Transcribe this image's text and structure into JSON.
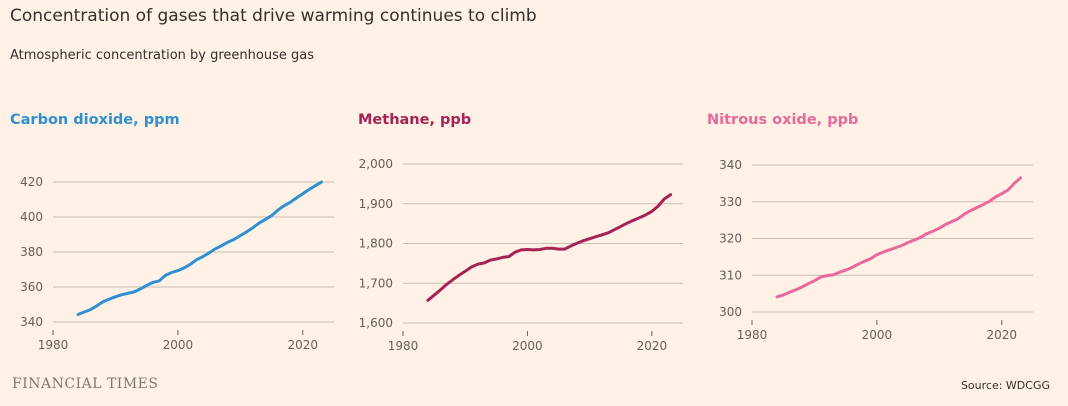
{
  "title": "Concentration of gases that drive warming continues to climb",
  "subtitle": "Atmospheric concentration by greenhouse gas",
  "footer": {
    "brand": "FINANCIAL TIMES",
    "source": "Source: WDCGG"
  },
  "chart_data": [
    {
      "type": "line",
      "title": "Carbon dioxide, ppm",
      "color": "#2e90d1",
      "xlabel": "",
      "ylabel": "",
      "xlim": [
        1980,
        2025
      ],
      "ylim": [
        340,
        425
      ],
      "x_ticks": [
        1980,
        2000,
        2020
      ],
      "y_ticks": [
        340,
        360,
        380,
        400,
        420
      ],
      "y_tick_labels": [
        "340",
        "360",
        "380",
        "400",
        "420"
      ],
      "x": [
        1984,
        1985,
        1986,
        1987,
        1988,
        1989,
        1990,
        1991,
        1992,
        1993,
        1994,
        1995,
        1996,
        1997,
        1998,
        1999,
        2000,
        2001,
        2002,
        2003,
        2004,
        2005,
        2006,
        2007,
        2008,
        2009,
        2010,
        2011,
        2012,
        2013,
        2014,
        2015,
        2016,
        2017,
        2018,
        2019,
        2020,
        2021,
        2022,
        2023
      ],
      "values": [
        344.3,
        345.7,
        347.1,
        349.2,
        351.6,
        353.1,
        354.4,
        355.6,
        356.4,
        357.2,
        358.9,
        360.9,
        362.6,
        363.5,
        366.6,
        368.3,
        369.4,
        370.9,
        373.0,
        375.6,
        377.4,
        379.5,
        381.8,
        383.6,
        385.6,
        387.2,
        389.4,
        391.5,
        393.9,
        396.5,
        398.6,
        400.8,
        403.9,
        406.4,
        408.4,
        410.9,
        413.3,
        415.7,
        417.9,
        420.0
      ]
    },
    {
      "type": "line",
      "title": "Methane, ppb",
      "color": "#a62455",
      "xlabel": "",
      "ylabel": "",
      "xlim": [
        1980,
        2025
      ],
      "ylim": [
        1600,
        2000
      ],
      "x_ticks": [
        1980,
        2000,
        2020
      ],
      "y_ticks": [
        1600,
        1700,
        1800,
        1900,
        2000
      ],
      "y_tick_labels": [
        "1,600",
        "1,700",
        "1,800",
        "1,900",
        "2,000"
      ],
      "x": [
        1984,
        1985,
        1986,
        1987,
        1988,
        1989,
        1990,
        1991,
        1992,
        1993,
        1994,
        1995,
        1996,
        1997,
        1998,
        1999,
        2000,
        2001,
        2002,
        2003,
        2004,
        2005,
        2006,
        2007,
        2008,
        2009,
        2010,
        2011,
        2012,
        2013,
        2014,
        2015,
        2016,
        2017,
        2018,
        2019,
        2020,
        2021,
        2022,
        2023
      ],
      "values": [
        1657,
        1670,
        1683,
        1697,
        1709,
        1720,
        1730,
        1741,
        1748,
        1751,
        1758,
        1761,
        1765,
        1767,
        1778,
        1784,
        1785,
        1784,
        1785,
        1788,
        1788,
        1786,
        1786,
        1794,
        1801,
        1807,
        1812,
        1817,
        1822,
        1827,
        1835,
        1843,
        1851,
        1858,
        1865,
        1872,
        1881,
        1894,
        1912,
        1923
      ]
    },
    {
      "type": "line",
      "title": "Nitrous oxide, ppb",
      "color": "#e8699a",
      "xlabel": "",
      "ylabel": "",
      "xlim": [
        1980,
        2025
      ],
      "ylim": [
        300,
        340
      ],
      "x_ticks": [
        1980,
        2000,
        2020
      ],
      "y_ticks": [
        300,
        310,
        320,
        330,
        340
      ],
      "y_tick_labels": [
        "300",
        "310",
        "320",
        "330",
        "340"
      ],
      "x": [
        1984,
        1985,
        1986,
        1987,
        1988,
        1989,
        1990,
        1991,
        1992,
        1993,
        1994,
        1995,
        1996,
        1997,
        1998,
        1999,
        2000,
        2001,
        2002,
        2003,
        2004,
        2005,
        2006,
        2007,
        2008,
        2009,
        2010,
        2011,
        2012,
        2013,
        2014,
        2015,
        2016,
        2017,
        2018,
        2019,
        2020,
        2021,
        2022,
        2023
      ],
      "values": [
        304.1,
        304.6,
        305.4,
        306.0,
        306.8,
        307.7,
        308.5,
        309.5,
        309.9,
        310.1,
        310.8,
        311.4,
        312.1,
        313.0,
        313.8,
        314.5,
        315.6,
        316.3,
        316.9,
        317.5,
        318.1,
        318.9,
        319.6,
        320.3,
        321.3,
        322.0,
        322.8,
        323.8,
        324.6,
        325.4,
        326.6,
        327.6,
        328.4,
        329.2,
        330.1,
        331.3,
        332.2,
        333.2,
        335.0,
        336.5
      ]
    }
  ]
}
